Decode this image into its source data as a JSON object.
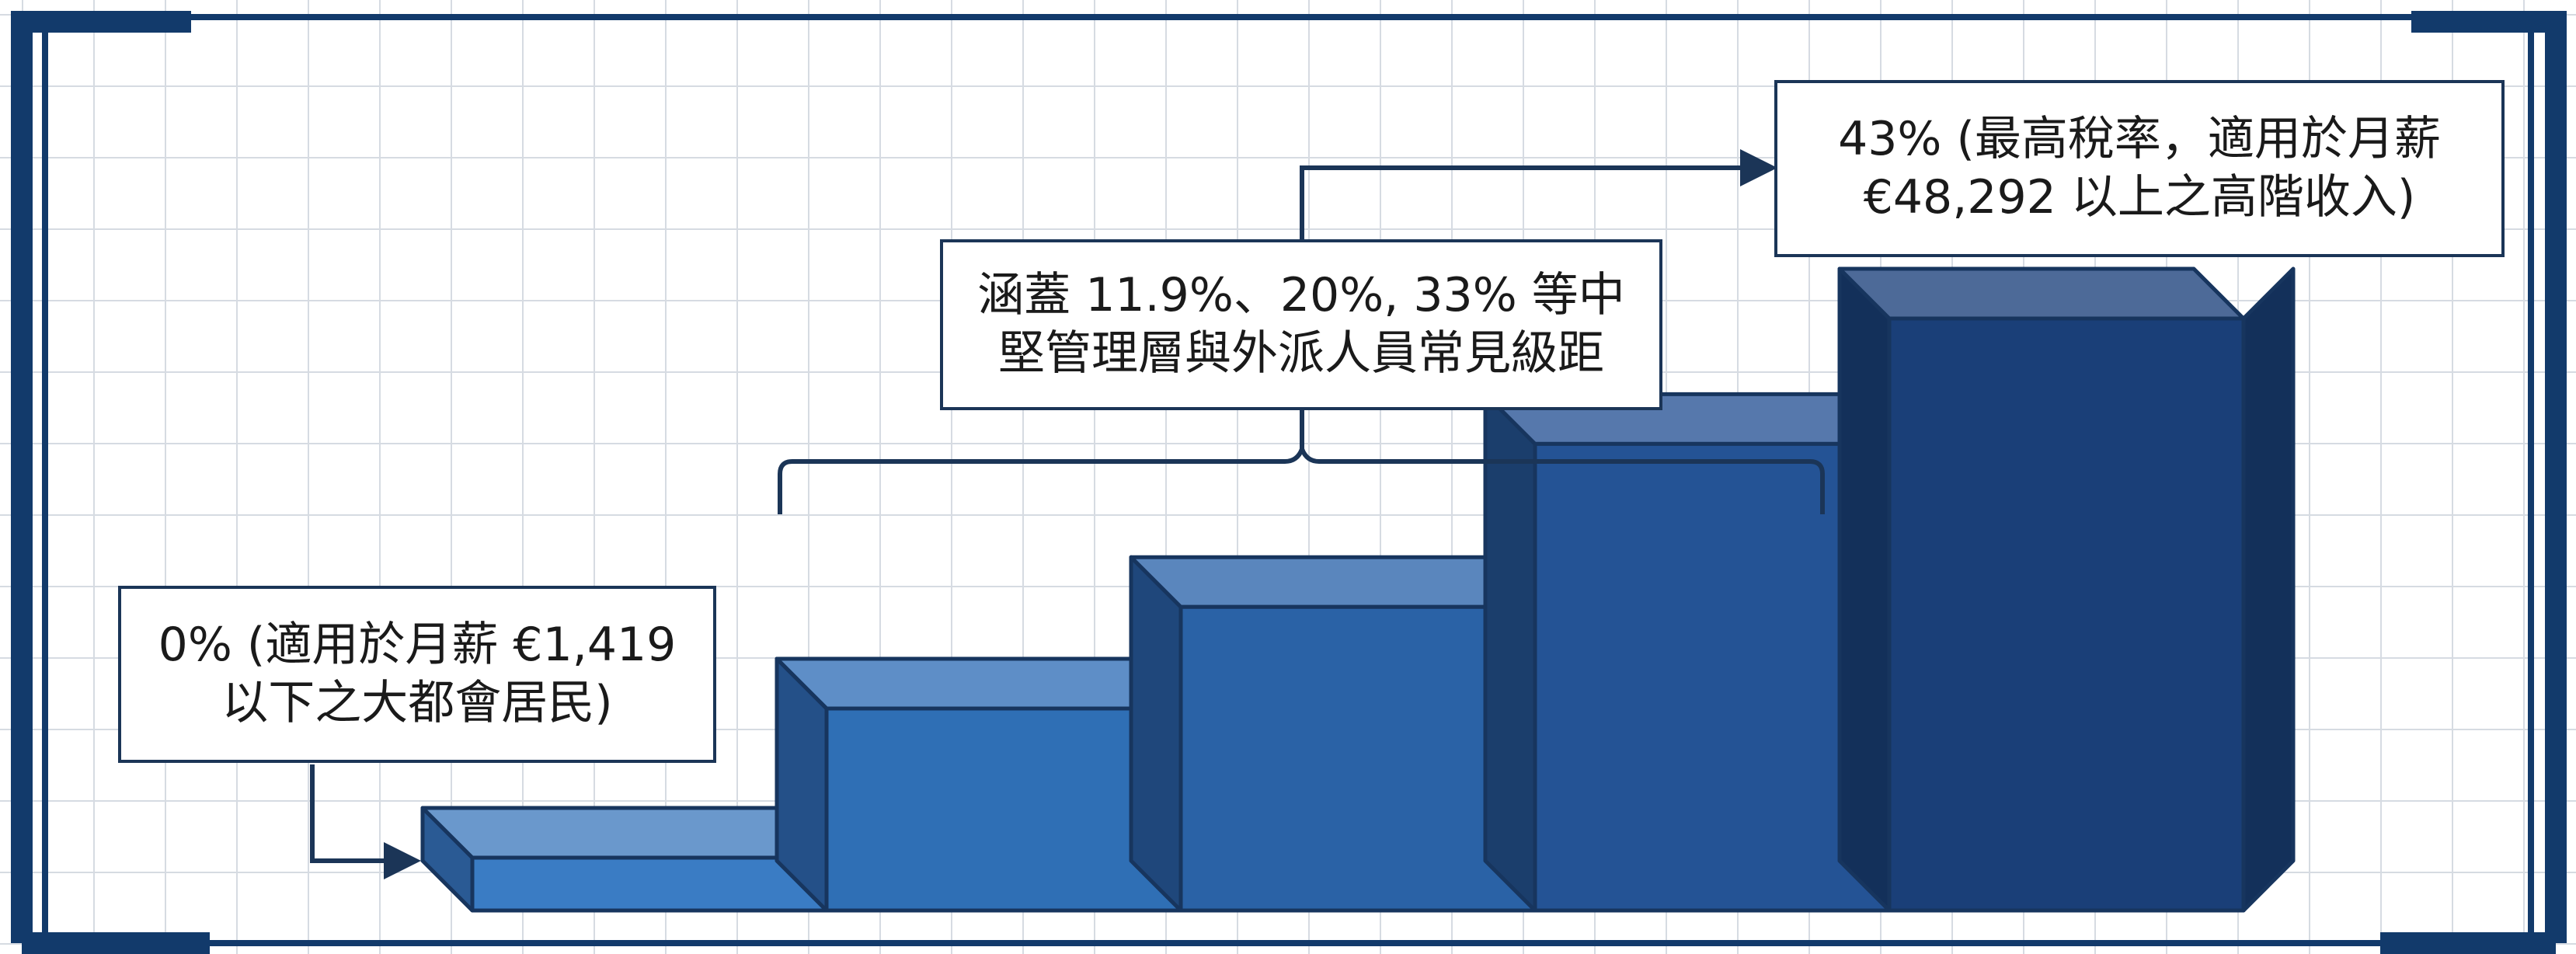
{
  "labels": {
    "zero": {
      "line1": "0% (適用於月薪 €1,419",
      "line2": "以下之大都會居民)"
    },
    "mid": {
      "line1": "涵蓋 11.9%、20%, 33% 等中",
      "line2": "堅管理層與外派人員常見級距"
    },
    "top": {
      "line1": "43% (最高稅率，適用於月薪",
      "line2": "€48,292 以上之高階收入)"
    }
  },
  "steps": [
    {
      "rate": "0%"
    },
    {
      "rate": "11.9%"
    },
    {
      "rate": "20%"
    },
    {
      "rate": "33%"
    },
    {
      "rate": "43%"
    }
  ],
  "colors": {
    "frame": "#123a6b",
    "step_fronts": [
      "#3a7cc4",
      "#2f6fb5",
      "#2a62a6",
      "#245395",
      "#1a3f78"
    ],
    "step_tops": [
      "#6a98cc",
      "#5e8ec7",
      "#5a86bd",
      "#5678ac",
      "#4d6a98"
    ],
    "step_sides": [
      "#2a5a94",
      "#245088",
      "#1f477b",
      "#1b3e6c",
      "#13305a"
    ],
    "outline": "#17355e",
    "connector": "#1b3557"
  }
}
